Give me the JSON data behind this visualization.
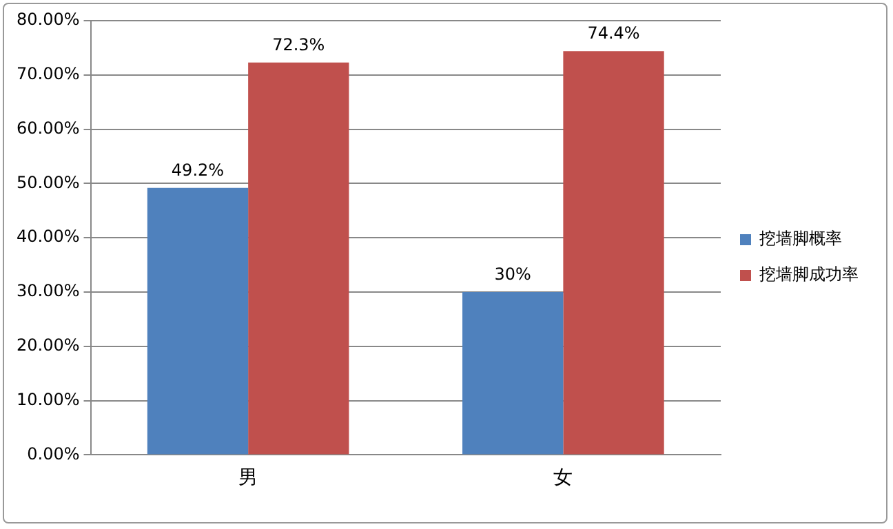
{
  "chart_data": {
    "type": "bar",
    "categories": [
      "男",
      "女"
    ],
    "series": [
      {
        "name": "挖墙脚概率",
        "color": "#4f81bd",
        "values": [
          49.2,
          30
        ],
        "value_labels": [
          "49.2%",
          "30%"
        ]
      },
      {
        "name": "挖墙脚成功率",
        "color": "#c0504d",
        "values": [
          72.3,
          74.4
        ],
        "value_labels": [
          "72.3%",
          "74.4%"
        ]
      }
    ],
    "ylim": [
      0,
      80
    ],
    "yticks": [
      {
        "value": 0,
        "label": "0.00%"
      },
      {
        "value": 10,
        "label": "10.00%"
      },
      {
        "value": 20,
        "label": "20.00%"
      },
      {
        "value": 30,
        "label": "30.00%"
      },
      {
        "value": 40,
        "label": "40.00%"
      },
      {
        "value": 50,
        "label": "50.00%"
      },
      {
        "value": 60,
        "label": "60.00%"
      },
      {
        "value": 70,
        "label": "70.00%"
      },
      {
        "value": 80,
        "label": "80.00%"
      }
    ],
    "grid": "y",
    "legend": "right"
  }
}
